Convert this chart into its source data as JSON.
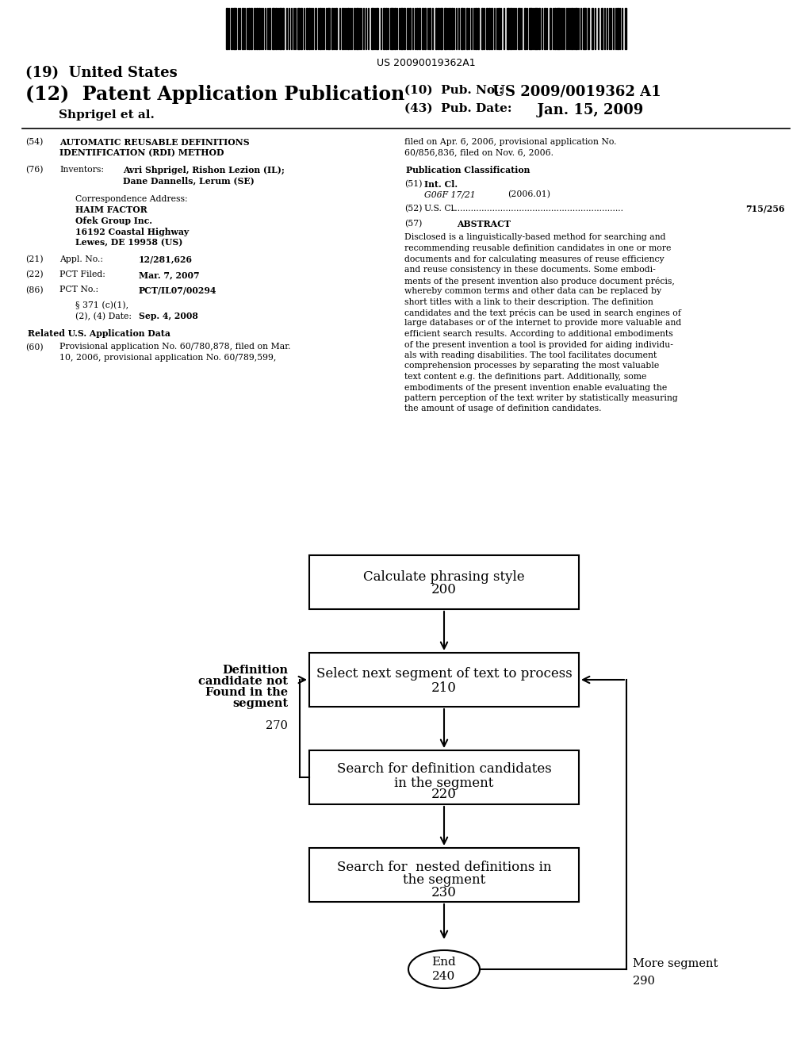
{
  "background_color": "#ffffff",
  "barcode_text": "US 20090019362A1",
  "title_19": "(19)  United States",
  "title_12_left": "(12)  Patent Application Publication",
  "inventor_line": "        Shprigel et al.",
  "pub_no_label": "(10)  Pub. No.:",
  "pub_no_value": " US 2009/0019362 A1",
  "pub_date_label": "(43)  Pub. Date:",
  "pub_date_value": "          Jan. 15, 2009",
  "section_54_label": "(54)",
  "section_54_text": "AUTOMATIC REUSABLE DEFINITIONS\nIDENTIFICATION (RDI) METHOD",
  "section_76_label": "(76)",
  "section_76_title": "Inventors:",
  "section_76_inventors": "Avri Shprigel, Rishon Lezion (IL);",
  "section_76_inventors2": "Dane Dannells, Lerum (SE)",
  "corr_address_label": "Correspondence Address:",
  "corr_name": "HAIM FACTOR",
  "corr_company": "Ofek Group Inc.",
  "corr_street": "16192 Coastal Highway",
  "corr_city": "Lewes, DE 19958 (US)",
  "section_21_label": "(21)",
  "section_21_title": "Appl. No.:",
  "section_21_value": "12/281,626",
  "section_22_label": "(22)",
  "section_22_title": "PCT Filed:",
  "section_22_value": "Mar. 7, 2007",
  "section_86_label": "(86)",
  "section_86_title": "PCT No.:",
  "section_86_value": "PCT/IL07/00294",
  "section_371_line1": "§ 371 (c)(1),",
  "section_371_line2": "(2), (4) Date:",
  "section_371_value": "Sep. 4, 2008",
  "related_us_label": "Related U.S. Application Data",
  "section_60_label": "(60)",
  "section_60_line1": "Provisional application No. 60/780,878, filed on Mar.",
  "section_60_line2": "10, 2006, provisional application No. 60/789,599,",
  "right_top_line1": "filed on Apr. 6, 2006, provisional application No.",
  "right_top_line2": "60/856,836, filed on Nov. 6, 2006.",
  "pub_class_label": "Publication Classification",
  "section_51_label": "(51)",
  "section_51_title": "Int. Cl.",
  "section_51_class": "G06F 17/21",
  "section_51_year": "(2006.01)",
  "section_52_label": "(52)",
  "section_52_title": "U.S. Cl.",
  "section_52_dots": "................................................................",
  "section_52_value": "715/256",
  "section_57_label": "(57)",
  "section_57_title": "ABSTRACT",
  "abstract_lines": [
    "Disclosed is a linguistically-based method for searching and",
    "recommending reusable definition candidates in one or more",
    "documents and for calculating measures of reuse efficiency",
    "and reuse consistency in these documents. Some embodi-",
    "ments of the present invention also produce document précis,",
    "whereby common terms and other data can be replaced by",
    "short titles with a link to their description. The definition",
    "candidates and the text précis can be used in search engines of",
    "large databases or of the internet to provide more valuable and",
    "efficient search results. According to additional embodiments",
    "of the present invention a tool is provided for aiding individu-",
    "als with reading disabilities. The tool facilitates document",
    "comprehension processes by separating the most valuable",
    "text content e.g. the definitions part. Additionally, some",
    "embodiments of the present invention enable evaluating the",
    "pattern perception of the text writer by statistically measuring",
    "the amount of usage of definition candidates."
  ],
  "box1_line1": "Calculate phrasing style",
  "box1_line2": "200",
  "box2_line1": "Select next segment of text to process",
  "box2_line2": "210",
  "box3_line1": "Search for definition candidates",
  "box3_line2": "in the segment",
  "box3_line3": "220",
  "box4_line1": "Search for  nested definitions in",
  "box4_line2": "the segment",
  "box4_line3": "230",
  "oval_line1": "End",
  "oval_line2": "240",
  "label_270_lines": [
    "Definition",
    "candidate not",
    "Found in the",
    "segment",
    "",
    "270"
  ],
  "label_290_line1": "More segment",
  "label_290_line2": "290"
}
